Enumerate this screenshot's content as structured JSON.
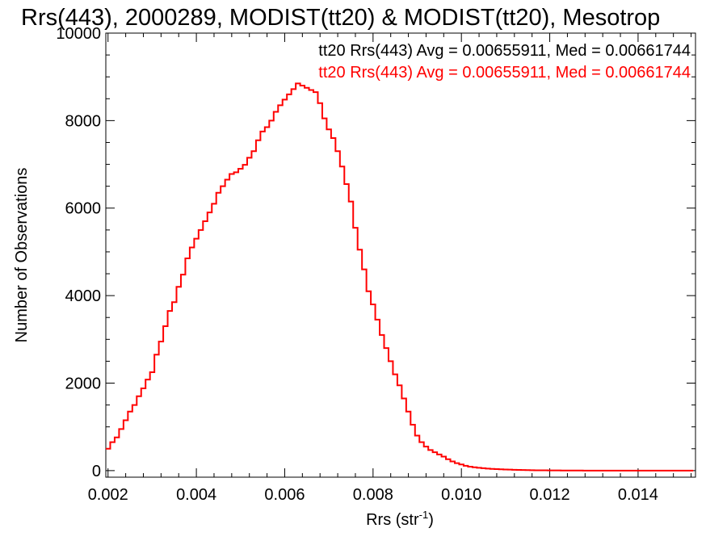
{
  "chart_data": {
    "type": "line",
    "title": "Rrs(443), 2000289, MODIST(tt20) & MODIST(tt20), Mesotrop",
    "xlabel": "Rrs (str",
    "xlabel_sup": "-1",
    "xlabel_close": ")",
    "ylabel": "Number of Observations",
    "xlim": [
      0.00195,
      0.0153
    ],
    "ylim": [
      -150,
      10000
    ],
    "x_ticks": [
      0.002,
      0.004,
      0.006,
      0.008,
      0.01,
      0.012,
      0.014
    ],
    "x_tick_labels": [
      "0.002",
      "0.004",
      "0.006",
      "0.008",
      "0.010",
      "0.012",
      "0.014"
    ],
    "y_ticks": [
      0,
      2000,
      4000,
      6000,
      8000,
      10000
    ],
    "y_tick_labels": [
      "0",
      "2000",
      "4000",
      "6000",
      "8000",
      "10000"
    ],
    "grid": false,
    "legend_position": "top-right",
    "legend": [
      {
        "text": "tt20 Rrs(443) Avg = 0.00655911, Med = 0.00661744",
        "color": "#000000"
      },
      {
        "text": "tt20 Rrs(443) Avg = 0.00655911, Med = 0.00661744",
        "color": "#ff0000"
      }
    ],
    "series": [
      {
        "color": "#ff0000",
        "step": true,
        "x": [
          0.002,
          0.0021,
          0.0022,
          0.0023,
          0.0024,
          0.0025,
          0.0026,
          0.0027,
          0.0028,
          0.0029,
          0.003,
          0.0031,
          0.0032,
          0.0033,
          0.0034,
          0.0035,
          0.0036,
          0.0037,
          0.0038,
          0.0039,
          0.004,
          0.0041,
          0.0042,
          0.0043,
          0.0044,
          0.0045,
          0.0046,
          0.0047,
          0.0048,
          0.0049,
          0.005,
          0.0051,
          0.0052,
          0.0053,
          0.0054,
          0.0055,
          0.0056,
          0.0057,
          0.0058,
          0.0059,
          0.006,
          0.0061,
          0.0062,
          0.0063,
          0.0064,
          0.0065,
          0.0066,
          0.0067,
          0.0068,
          0.0069,
          0.007,
          0.0071,
          0.0072,
          0.0073,
          0.0074,
          0.0075,
          0.0076,
          0.0077,
          0.0078,
          0.0079,
          0.008,
          0.0081,
          0.0082,
          0.0083,
          0.0084,
          0.0085,
          0.0086,
          0.0087,
          0.0088,
          0.0089,
          0.009,
          0.0091,
          0.0092,
          0.0093,
          0.0094,
          0.0095,
          0.0096,
          0.0097,
          0.0098,
          0.0099,
          0.01,
          0.0101,
          0.0102,
          0.0103,
          0.0104,
          0.0105,
          0.0106,
          0.0107,
          0.0108,
          0.0109,
          0.011,
          0.0111,
          0.0112,
          0.0113,
          0.0114,
          0.0115,
          0.0116,
          0.0117,
          0.0118,
          0.0119,
          0.012,
          0.0121,
          0.0122,
          0.0123,
          0.0124,
          0.0125,
          0.0126,
          0.0127,
          0.0128,
          0.0129,
          0.013,
          0.0131,
          0.0132,
          0.0133,
          0.0134,
          0.0135,
          0.0136,
          0.0137,
          0.0138,
          0.0139,
          0.014,
          0.0141,
          0.0142,
          0.0143,
          0.0144,
          0.0145,
          0.0146,
          0.0147,
          0.0148,
          0.0149,
          0.015,
          0.0151,
          0.0152
        ],
        "values": [
          500,
          650,
          760,
          950,
          1150,
          1350,
          1500,
          1700,
          1880,
          2080,
          2250,
          2650,
          2950,
          3300,
          3650,
          3850,
          4200,
          4480,
          4850,
          5100,
          5300,
          5500,
          5700,
          5900,
          6100,
          6350,
          6500,
          6650,
          6780,
          6820,
          6900,
          6990,
          7150,
          7300,
          7550,
          7750,
          7850,
          8000,
          8200,
          8350,
          8480,
          8600,
          8720,
          8850,
          8800,
          8750,
          8700,
          8650,
          8400,
          8050,
          7800,
          7600,
          7300,
          6950,
          6550,
          6150,
          5550,
          5050,
          4600,
          4100,
          3800,
          3450,
          3100,
          2800,
          2500,
          2200,
          1950,
          1650,
          1350,
          1050,
          800,
          650,
          550,
          470,
          420,
          370,
          320,
          260,
          210,
          170,
          140,
          110,
          90,
          75,
          65,
          55,
          45,
          40,
          35,
          30,
          25,
          22,
          18,
          15,
          13,
          11,
          10,
          8,
          7,
          6,
          5,
          5,
          4,
          3,
          3,
          2,
          2,
          2,
          1,
          1,
          1,
          1,
          1,
          1,
          0,
          0,
          0,
          0,
          0,
          0,
          0,
          0,
          0,
          0,
          0,
          0,
          0,
          0,
          0,
          0,
          0,
          0,
          0
        ]
      }
    ]
  }
}
